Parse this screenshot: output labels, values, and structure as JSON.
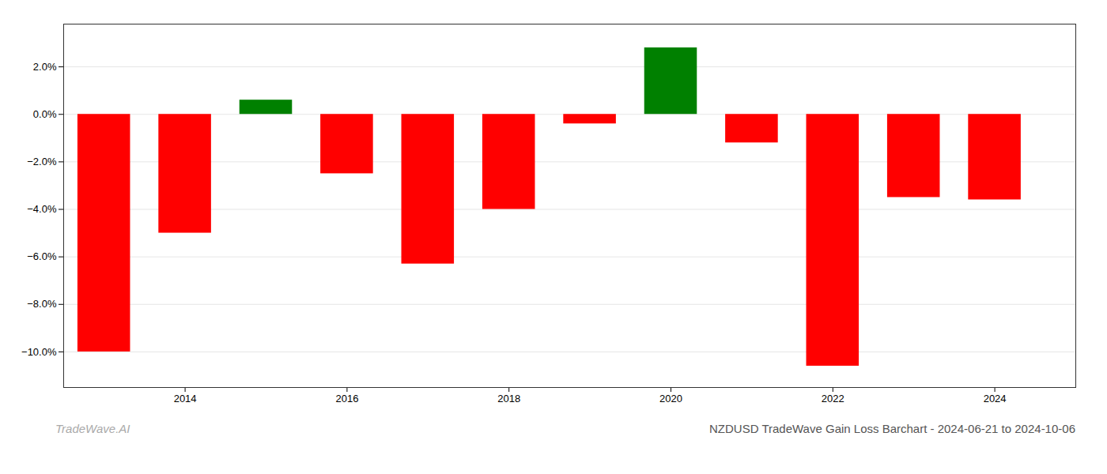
{
  "chart_data": {
    "type": "bar",
    "title": "NZDUSD TradeWave Gain Loss Barchart - 2024-06-21 to 2024-10-06",
    "annotations": [
      "TradeWave.AI"
    ],
    "x": [
      2013,
      2014,
      2015,
      2016,
      2017,
      2018,
      2019,
      2020,
      2021,
      2022,
      2023,
      2024
    ],
    "values": [
      -0.1,
      -0.05,
      0.006,
      -0.025,
      -0.063,
      -0.04,
      -0.004,
      0.028,
      -0.012,
      -0.106,
      -0.035,
      -0.036
    ],
    "colors": [
      "#ff0000",
      "#ff0000",
      "#008000",
      "#ff0000",
      "#ff0000",
      "#ff0000",
      "#ff0000",
      "#008000",
      "#ff0000",
      "#ff0000",
      "#ff0000",
      "#ff0000"
    ],
    "xlim": [
      2012.5,
      2025.0
    ],
    "xticks": [
      2014,
      2016,
      2018,
      2020,
      2022,
      2024
    ],
    "ylim": [
      -0.115,
      0.038
    ],
    "yticks": [
      {
        "value": -0.1,
        "label": "−10.0%"
      },
      {
        "value": -0.08,
        "label": "−8.0%"
      },
      {
        "value": -0.06,
        "label": "−6.0%"
      },
      {
        "value": -0.04,
        "label": "−4.0%"
      },
      {
        "value": -0.02,
        "label": "−2.0%"
      },
      {
        "value": 0.0,
        "label": "0.0%"
      },
      {
        "value": 0.02,
        "label": "2.0%"
      }
    ],
    "grid": true
  }
}
